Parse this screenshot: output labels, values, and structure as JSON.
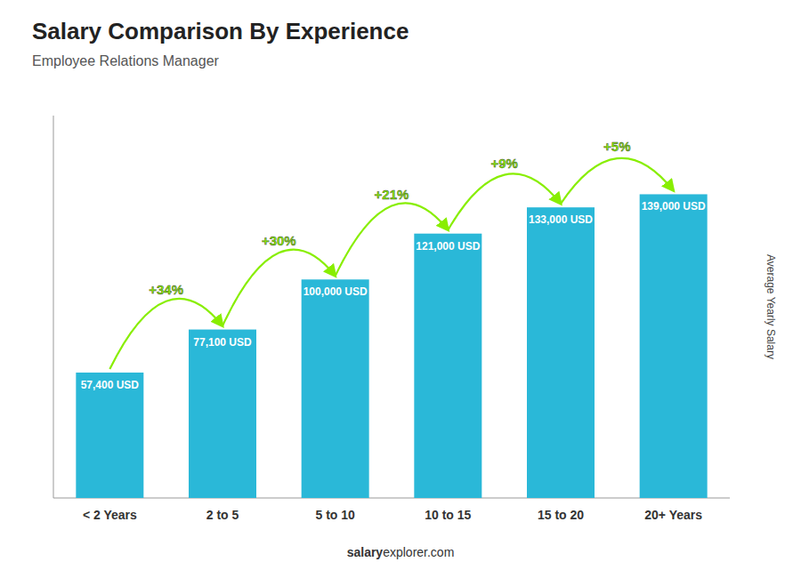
{
  "chart_data": {
    "type": "bar",
    "title": "Salary Comparison By Experience",
    "subtitle": "Employee Relations Manager",
    "ylabel": "Average Yearly Salary",
    "categories": [
      "< 2 Years",
      "2 to 5",
      "5 to 10",
      "10 to 15",
      "15 to 20",
      "20+ Years"
    ],
    "values": [
      57400,
      77100,
      100000,
      121000,
      133000,
      139000
    ],
    "value_labels": [
      "57,400 USD",
      "77,100 USD",
      "100,000 USD",
      "121,000 USD",
      "133,000 USD",
      "139,000 USD"
    ],
    "data_labels": true,
    "color": "#2ab8d8",
    "ylim": [
      0,
      175000
    ],
    "grid": false,
    "tick_labels": "x",
    "annotations": [
      {
        "text": "+34%",
        "color": "#88ee00"
      },
      {
        "text": "+30%",
        "color": "#88ee00"
      },
      {
        "text": "+21%",
        "color": "#88ee00"
      },
      {
        "text": "+9%",
        "color": "#88ee00"
      },
      {
        "text": "+5%",
        "color": "#88ee00"
      }
    ],
    "footer": [
      "salary",
      "explorer.com"
    ]
  }
}
